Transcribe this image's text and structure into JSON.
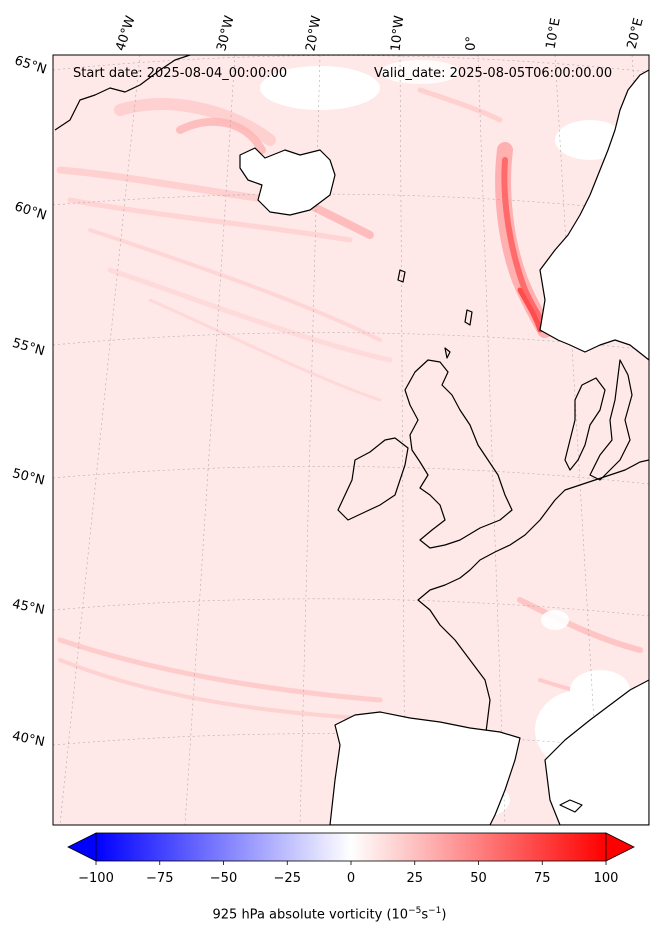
{
  "header": {
    "start_date": "Start date: 2025-08-04_00:00:00",
    "valid_date": "Valid_date: 2025-08-05T06:00:00.00"
  },
  "lat_labels": [
    "65°N",
    "60°N",
    "55°N",
    "50°N",
    "45°N",
    "40°N"
  ],
  "lon_labels": [
    "40°W",
    "30°W",
    "20°W",
    "10°W",
    "0°",
    "10°E",
    "20°E"
  ],
  "colorbar": {
    "min": -100,
    "max": 100,
    "ticks": [
      "−100",
      "−75",
      "−50",
      "−25",
      "0",
      "25",
      "50",
      "75",
      "100"
    ],
    "label": "925 hPa absolute vorticity (10",
    "label_exp": "−5",
    "label_mid": "s",
    "label_exp2": "−1",
    "label_end": ")",
    "colors": {
      "negative": "#0000ff",
      "zero": "#ffffff",
      "positive": "#ff0000"
    }
  },
  "colors": {
    "field_base": "#ffe8e8",
    "land_line": "#000000",
    "grid": "#9a9a9a"
  }
}
